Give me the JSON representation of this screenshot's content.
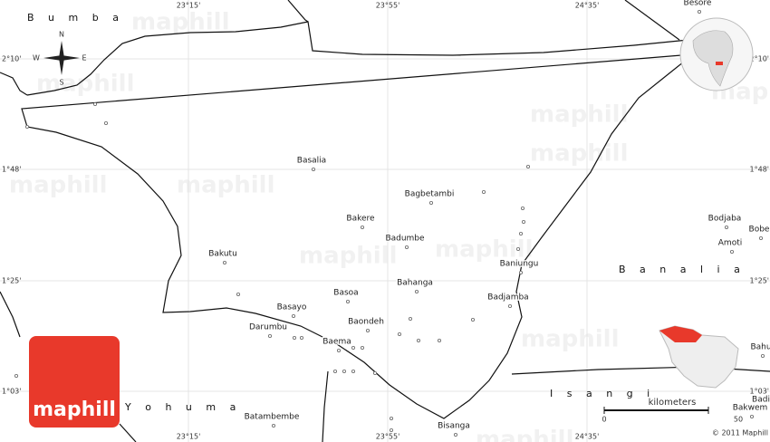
{
  "map": {
    "regions": [
      "B u m b a",
      "B a n a l i a",
      "Y o h u m a",
      "I s a n g i"
    ],
    "lon_labels": [
      "23°15'",
      "23°55'",
      "24°35'"
    ],
    "lat_labels": [
      "2°10'",
      "1°48'",
      "1°25'",
      "1°03'"
    ],
    "places": [
      "Besore",
      "Basalia",
      "Bagbetambi",
      "Bakere",
      "Badumbe",
      "Bakutu",
      "Baniungu",
      "Bahanga",
      "Basoa",
      "Basayo",
      "Badjamba",
      "Darumbu",
      "Baondeh",
      "Baema",
      "Batambembe",
      "Bisanga",
      "Bodjaba",
      "Bobe",
      "Amoti",
      "Bahu",
      "Badi",
      "Bakwem"
    ],
    "compass": [
      "N",
      "S",
      "E",
      "W"
    ],
    "scale": {
      "unit": "kilometers",
      "ticks": [
        0,
        50
      ]
    },
    "copyright": "© 2011 Maphill",
    "logo": "maphill",
    "watermark": "maphill"
  }
}
